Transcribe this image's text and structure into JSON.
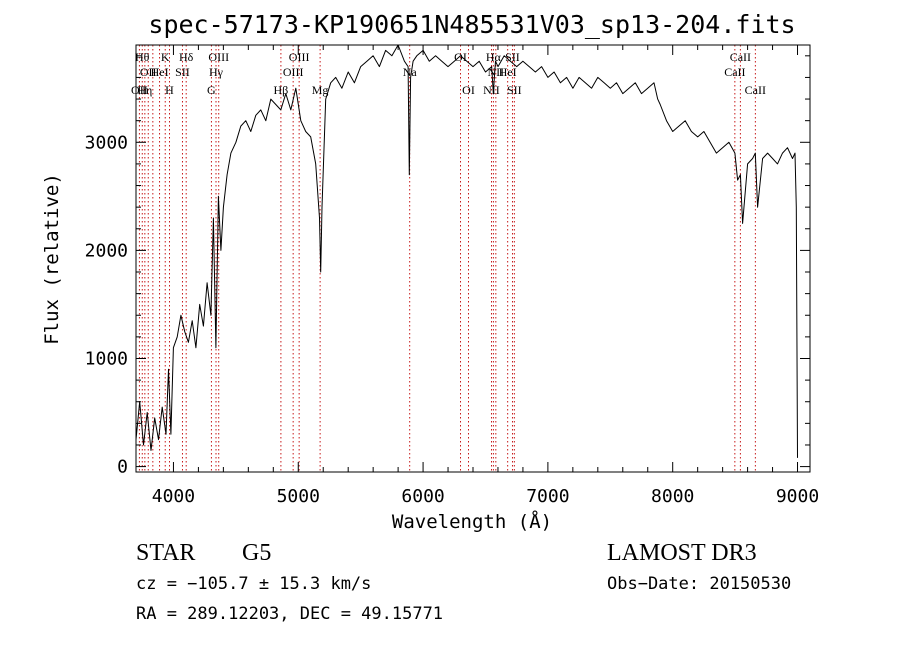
{
  "chart_data": {
    "type": "line",
    "title": "spec-57173-KP190651N485531V03_sp13-204.fits",
    "xlabel": "Wavelength (Å)",
    "ylabel": "Flux (relative)",
    "xlim": [
      3700,
      9100
    ],
    "ylim": [
      -50,
      3900
    ],
    "x_ticks": [
      4000,
      5000,
      6000,
      7000,
      8000,
      9000
    ],
    "y_ticks": [
      0,
      1000,
      2000,
      3000
    ],
    "grid": false,
    "series": [
      {
        "name": "flux",
        "x": [
          3700,
          3730,
          3760,
          3790,
          3820,
          3850,
          3880,
          3910,
          3940,
          3960,
          3980,
          4000,
          4030,
          4060,
          4090,
          4120,
          4150,
          4180,
          4210,
          4240,
          4270,
          4300,
          4320,
          4340,
          4360,
          4380,
          4400,
          4430,
          4460,
          4500,
          4540,
          4580,
          4620,
          4660,
          4700,
          4740,
          4780,
          4820,
          4860,
          4900,
          4940,
          4980,
          5020,
          5060,
          5100,
          5140,
          5170,
          5180,
          5190,
          5220,
          5260,
          5300,
          5350,
          5400,
          5450,
          5500,
          5550,
          5600,
          5650,
          5700,
          5750,
          5800,
          5850,
          5880,
          5890,
          5900,
          5920,
          5950,
          6000,
          6050,
          6100,
          6150,
          6200,
          6250,
          6300,
          6350,
          6400,
          6450,
          6500,
          6550,
          6563,
          6580,
          6600,
          6650,
          6700,
          6750,
          6800,
          6850,
          6900,
          6950,
          7000,
          7050,
          7100,
          7150,
          7200,
          7250,
          7300,
          7350,
          7400,
          7450,
          7500,
          7550,
          7600,
          7650,
          7700,
          7750,
          7800,
          7850,
          7880,
          7900,
          7950,
          8000,
          8050,
          8100,
          8150,
          8200,
          8250,
          8300,
          8350,
          8400,
          8450,
          8498,
          8520,
          8542,
          8560,
          8600,
          8640,
          8662,
          8680,
          8720,
          8760,
          8800,
          8840,
          8880,
          8920,
          8960,
          8980,
          8990,
          9000
        ],
        "values": [
          250,
          600,
          200,
          500,
          150,
          450,
          250,
          550,
          300,
          900,
          300,
          1100,
          1200,
          1400,
          1250,
          1150,
          1350,
          1100,
          1500,
          1300,
          1700,
          1400,
          2300,
          1100,
          2500,
          2000,
          2400,
          2700,
          2900,
          3000,
          3150,
          3200,
          3100,
          3250,
          3300,
          3200,
          3400,
          3350,
          3300,
          3450,
          3300,
          3500,
          3200,
          3100,
          3050,
          2800,
          2300,
          1800,
          2400,
          3400,
          3550,
          3600,
          3500,
          3650,
          3550,
          3700,
          3750,
          3800,
          3700,
          3850,
          3800,
          3900,
          3750,
          3700,
          2700,
          3600,
          3750,
          3800,
          3850,
          3750,
          3800,
          3750,
          3700,
          3750,
          3800,
          3750,
          3700,
          3750,
          3650,
          3700,
          3450,
          3750,
          3700,
          3800,
          3750,
          3700,
          3750,
          3700,
          3650,
          3700,
          3600,
          3650,
          3550,
          3600,
          3500,
          3600,
          3550,
          3500,
          3600,
          3550,
          3500,
          3550,
          3450,
          3500,
          3550,
          3450,
          3500,
          3550,
          3400,
          3350,
          3200,
          3100,
          3150,
          3200,
          3100,
          3050,
          3100,
          3000,
          2900,
          2950,
          3000,
          2900,
          2650,
          2700,
          2250,
          2800,
          2850,
          2900,
          2400,
          2850,
          2900,
          2850,
          2800,
          2900,
          2950,
          2850,
          2900,
          2400,
          80
        ]
      }
    ],
    "line_markers": [
      {
        "wavelength": 3727,
        "label": "OII",
        "row": 3
      },
      {
        "wavelength": 3750,
        "label": "Hθ",
        "row": 1
      },
      {
        "wavelength": 3771,
        "label": "Hη",
        "row": 3
      },
      {
        "wavelength": 3798,
        "label": "OII",
        "row": 2
      },
      {
        "wavelength": 3835,
        "label": "",
        "row": 0
      },
      {
        "wavelength": 3889,
        "label": "HeI",
        "row": 2
      },
      {
        "wavelength": 3934,
        "label": "K",
        "row": 1
      },
      {
        "wavelength": 3968,
        "label": "H",
        "row": 3
      },
      {
        "wavelength": 4072,
        "label": "SII",
        "row": 2
      },
      {
        "wavelength": 4102,
        "label": "Hδ",
        "row": 1
      },
      {
        "wavelength": 4304,
        "label": "G",
        "row": 3
      },
      {
        "wavelength": 4341,
        "label": "Hγ",
        "row": 2
      },
      {
        "wavelength": 4363,
        "label": "OIII",
        "row": 1
      },
      {
        "wavelength": 4861,
        "label": "Hβ",
        "row": 3
      },
      {
        "wavelength": 4959,
        "label": "OIII",
        "row": 2
      },
      {
        "wavelength": 5007,
        "label": "OIII",
        "row": 1
      },
      {
        "wavelength": 5175,
        "label": "Mg",
        "row": 3
      },
      {
        "wavelength": 5893,
        "label": "Na",
        "row": 2
      },
      {
        "wavelength": 6300,
        "label": "OI",
        "row": 1
      },
      {
        "wavelength": 6364,
        "label": "OI",
        "row": 3
      },
      {
        "wavelength": 6548,
        "label": "NII",
        "row": 3
      },
      {
        "wavelength": 6563,
        "label": "Hα",
        "row": 1
      },
      {
        "wavelength": 6583,
        "label": "NII",
        "row": 2
      },
      {
        "wavelength": 6678,
        "label": "HeI",
        "row": 2
      },
      {
        "wavelength": 6716,
        "label": "SII",
        "row": 1
      },
      {
        "wavelength": 6731,
        "label": "SII",
        "row": 3
      },
      {
        "wavelength": 8498,
        "label": "CaII",
        "row": 2
      },
      {
        "wavelength": 8542,
        "label": "CaII",
        "row": 1
      },
      {
        "wavelength": 8662,
        "label": "CaII",
        "row": 3
      }
    ]
  },
  "info": {
    "class_label": "STAR",
    "subclass": "G5",
    "survey": "LAMOST DR3",
    "cz_line": "cz = −105.7 ± 15.3 km/s",
    "obs_date": "Obs−Date: 20150530",
    "radec_line": "RA = 289.12203, DEC =  49.15771"
  },
  "colors": {
    "line_color": "#000000",
    "marker_color": "#c00000",
    "background": "#ffffff"
  }
}
